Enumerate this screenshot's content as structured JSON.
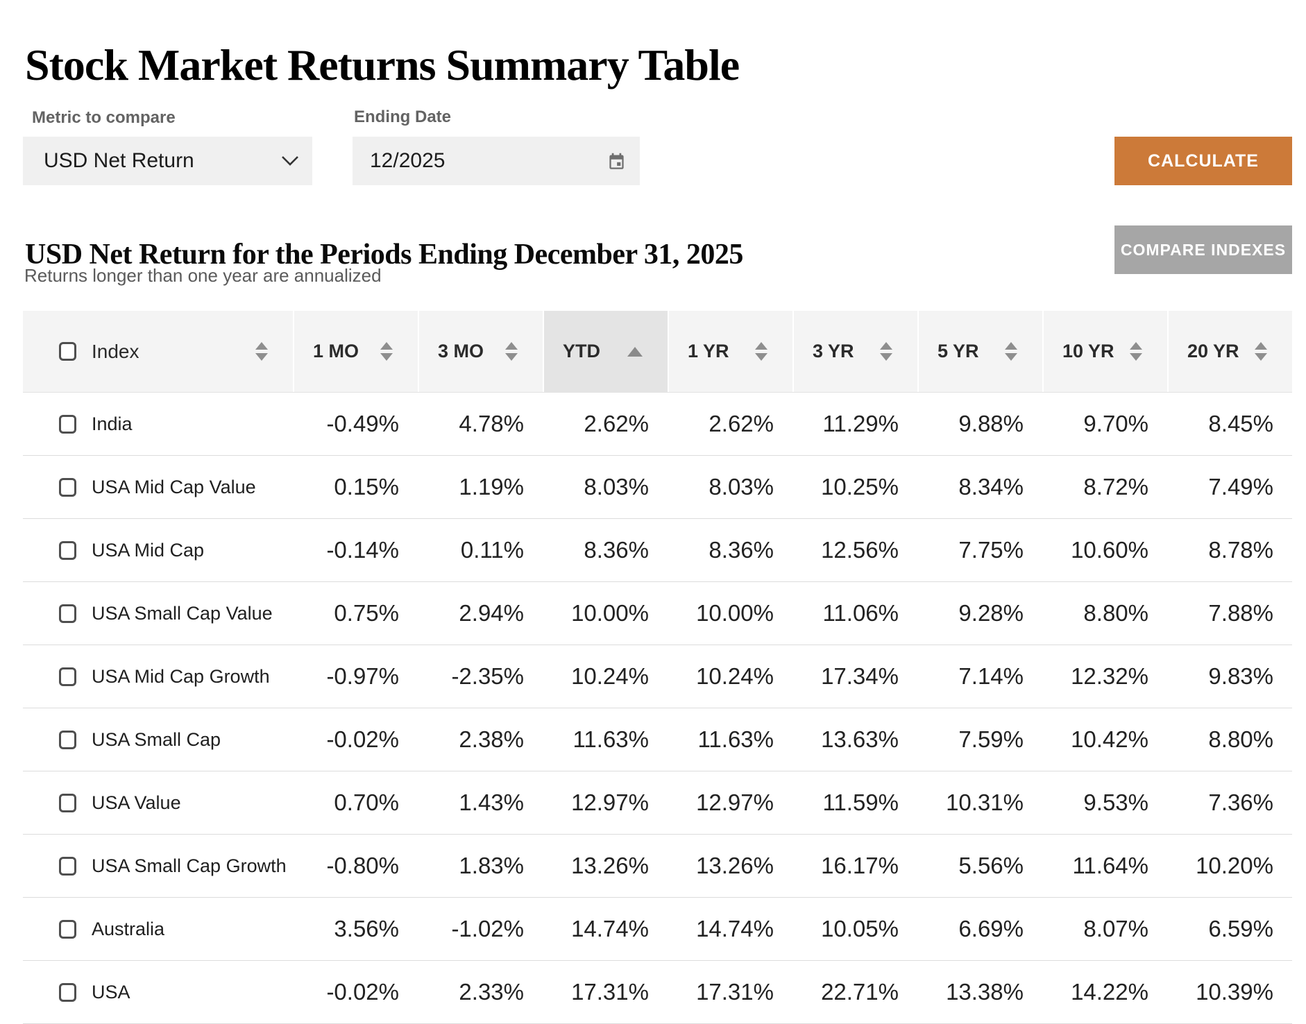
{
  "page": {
    "title": "Stock Market Returns Summary Table"
  },
  "controls": {
    "metric_label": "Metric to compare",
    "metric_value": "USD Net Return",
    "date_label": "Ending Date",
    "date_value": "12/2025",
    "calculate_label": "CALCULATE",
    "compare_label": "COMPARE INDEXES"
  },
  "section": {
    "heading": "USD Net Return for the Periods Ending December 31, 2025",
    "subheading": "Returns longer than one year are annualized"
  },
  "table": {
    "index_header": "Index",
    "columns": [
      "1 MO",
      "3 MO",
      "YTD",
      "1 YR",
      "3 YR",
      "5 YR",
      "10 YR",
      "20 YR"
    ],
    "sorted_column": "YTD",
    "sort_direction": "ascending",
    "rows": [
      {
        "name": "India",
        "values": [
          "-0.49%",
          "4.78%",
          "2.62%",
          "2.62%",
          "11.29%",
          "9.88%",
          "9.70%",
          "8.45%"
        ]
      },
      {
        "name": "USA Mid Cap Value",
        "values": [
          "0.15%",
          "1.19%",
          "8.03%",
          "8.03%",
          "10.25%",
          "8.34%",
          "8.72%",
          "7.49%"
        ]
      },
      {
        "name": "USA Mid Cap",
        "values": [
          "-0.14%",
          "0.11%",
          "8.36%",
          "8.36%",
          "12.56%",
          "7.75%",
          "10.60%",
          "8.78%"
        ]
      },
      {
        "name": "USA Small Cap Value",
        "values": [
          "0.75%",
          "2.94%",
          "10.00%",
          "10.00%",
          "11.06%",
          "9.28%",
          "8.80%",
          "7.88%"
        ]
      },
      {
        "name": "USA Mid Cap Growth",
        "values": [
          "-0.97%",
          "-2.35%",
          "10.24%",
          "10.24%",
          "17.34%",
          "7.14%",
          "12.32%",
          "9.83%"
        ]
      },
      {
        "name": "USA Small Cap",
        "values": [
          "-0.02%",
          "2.38%",
          "11.63%",
          "11.63%",
          "13.63%",
          "7.59%",
          "10.42%",
          "8.80%"
        ]
      },
      {
        "name": "USA Value",
        "values": [
          "0.70%",
          "1.43%",
          "12.97%",
          "12.97%",
          "11.59%",
          "10.31%",
          "9.53%",
          "7.36%"
        ]
      },
      {
        "name": "USA Small Cap Growth",
        "values": [
          "-0.80%",
          "1.83%",
          "13.26%",
          "13.26%",
          "16.17%",
          "5.56%",
          "11.64%",
          "10.20%"
        ]
      },
      {
        "name": "Australia",
        "values": [
          "3.56%",
          "-1.02%",
          "14.74%",
          "14.74%",
          "10.05%",
          "6.69%",
          "8.07%",
          "6.59%"
        ]
      },
      {
        "name": "USA",
        "values": [
          "-0.02%",
          "2.33%",
          "17.31%",
          "17.31%",
          "22.71%",
          "13.38%",
          "14.22%",
          "10.39%"
        ]
      }
    ]
  },
  "icons": {
    "dropdown": "chevron-down-icon",
    "date": "calendar-icon",
    "sort": "sort-icon",
    "sorted": "sort-ascending-icon"
  },
  "colors": {
    "accent_orange": "#cc7a39",
    "button_gray": "#a6a6a6",
    "header_bg": "#f4f4f4",
    "sorted_header_bg": "#e4e4e4",
    "row_border": "#dcdcdc"
  }
}
